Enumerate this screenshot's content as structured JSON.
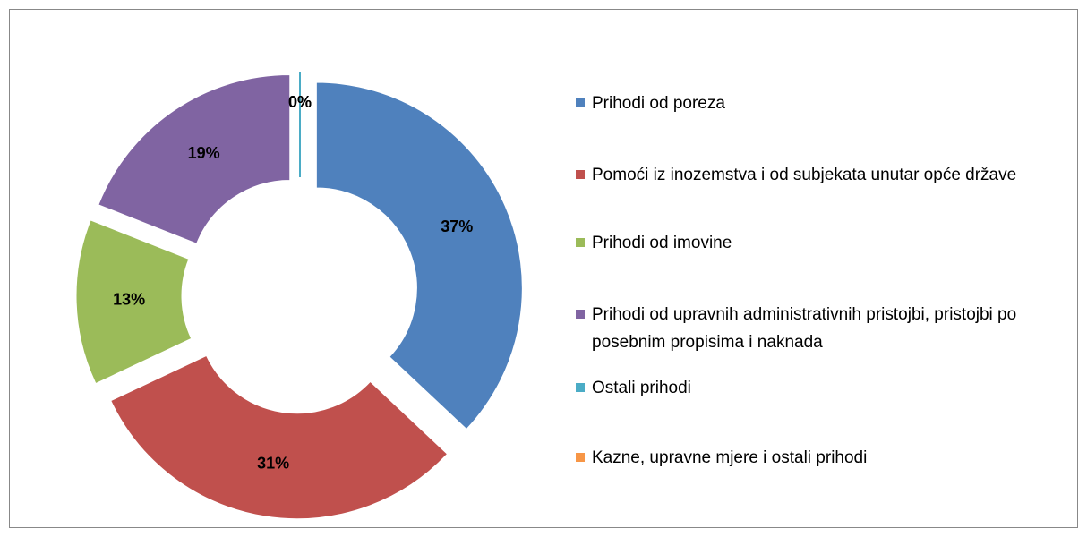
{
  "chart_data": {
    "type": "donut",
    "categories": [
      "Prihodi od poreza",
      "Pomoći iz inozemstva i od subjekata unutar opće države",
      "Prihodi od imovine",
      "Prihodi od upravnih administrativnih pristojbi, pristojbi po posebnim propisima i naknada",
      "Ostali prihodi",
      "Kazne, upravne mjere i ostali prihodi"
    ],
    "values": [
      37,
      31,
      13,
      19,
      0,
      0
    ],
    "value_labels": [
      "37%",
      "31%",
      "13%",
      "19%",
      "0%",
      "0%"
    ],
    "colors": [
      "#4f81bd",
      "#c0504d",
      "#9bbb59",
      "#8064a2",
      "#4bacc6",
      "#f79646"
    ],
    "legend": "right"
  }
}
